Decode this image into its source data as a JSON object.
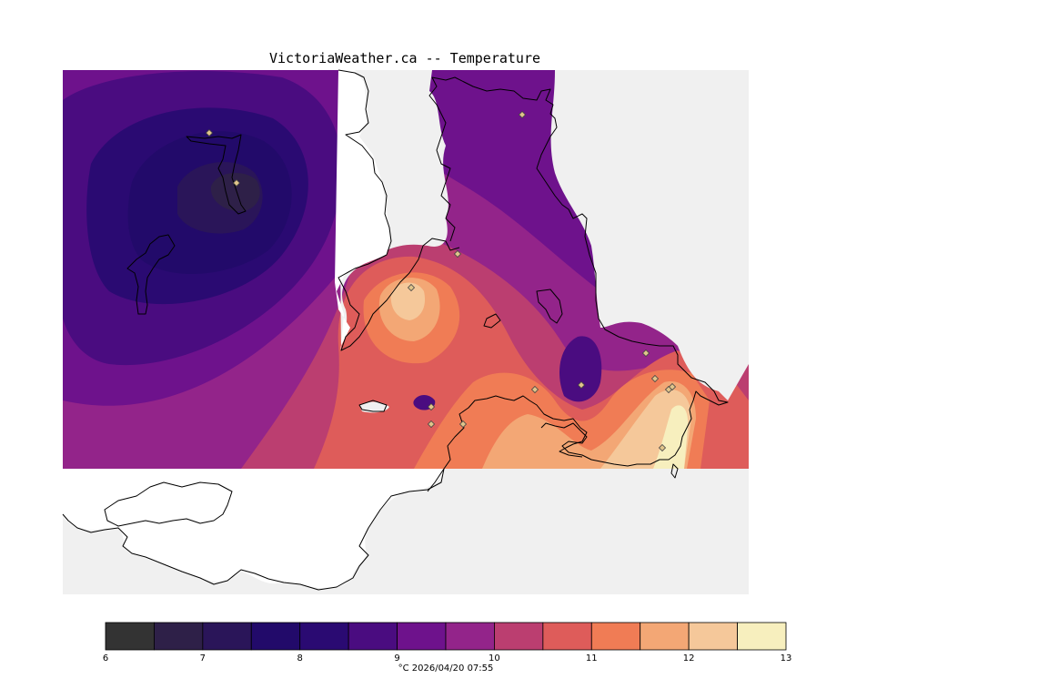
{
  "title": "VictoriaWeather.ca -- Temperature",
  "caption": "°C  2026/04/20 07:55",
  "colors": {
    "background": "#f0f0f0",
    "land": "#ffffff"
  },
  "legend": {
    "tick_labels": [
      "6",
      "7",
      "8",
      "9",
      "10",
      "11",
      "12",
      "13"
    ],
    "bins": [
      {
        "min": 6.0,
        "max": 6.5,
        "color": "#333333"
      },
      {
        "min": 6.5,
        "max": 7.0,
        "color": "#2e2048"
      },
      {
        "min": 7.0,
        "max": 7.5,
        "color": "#2a1559"
      },
      {
        "min": 7.5,
        "max": 8.0,
        "color": "#220a6a"
      },
      {
        "min": 8.0,
        "max": 8.5,
        "color": "#2a0a72"
      },
      {
        "min": 8.5,
        "max": 9.0,
        "color": "#4a0c80"
      },
      {
        "min": 9.0,
        "max": 9.5,
        "color": "#6e128c"
      },
      {
        "min": 9.5,
        "max": 10.0,
        "color": "#93248a"
      },
      {
        "min": 10.0,
        "max": 10.5,
        "color": "#bb3e70"
      },
      {
        "min": 10.5,
        "max": 11.0,
        "color": "#de5c5a"
      },
      {
        "min": 11.0,
        "max": 11.5,
        "color": "#f07c55"
      },
      {
        "min": 11.5,
        "max": 12.0,
        "color": "#f3a775"
      },
      {
        "min": 12.0,
        "max": 12.5,
        "color": "#f5c89a"
      },
      {
        "min": 12.5,
        "max": 13.0,
        "color": "#f7efbe"
      }
    ]
  },
  "map": {
    "stations_count": 15
  }
}
